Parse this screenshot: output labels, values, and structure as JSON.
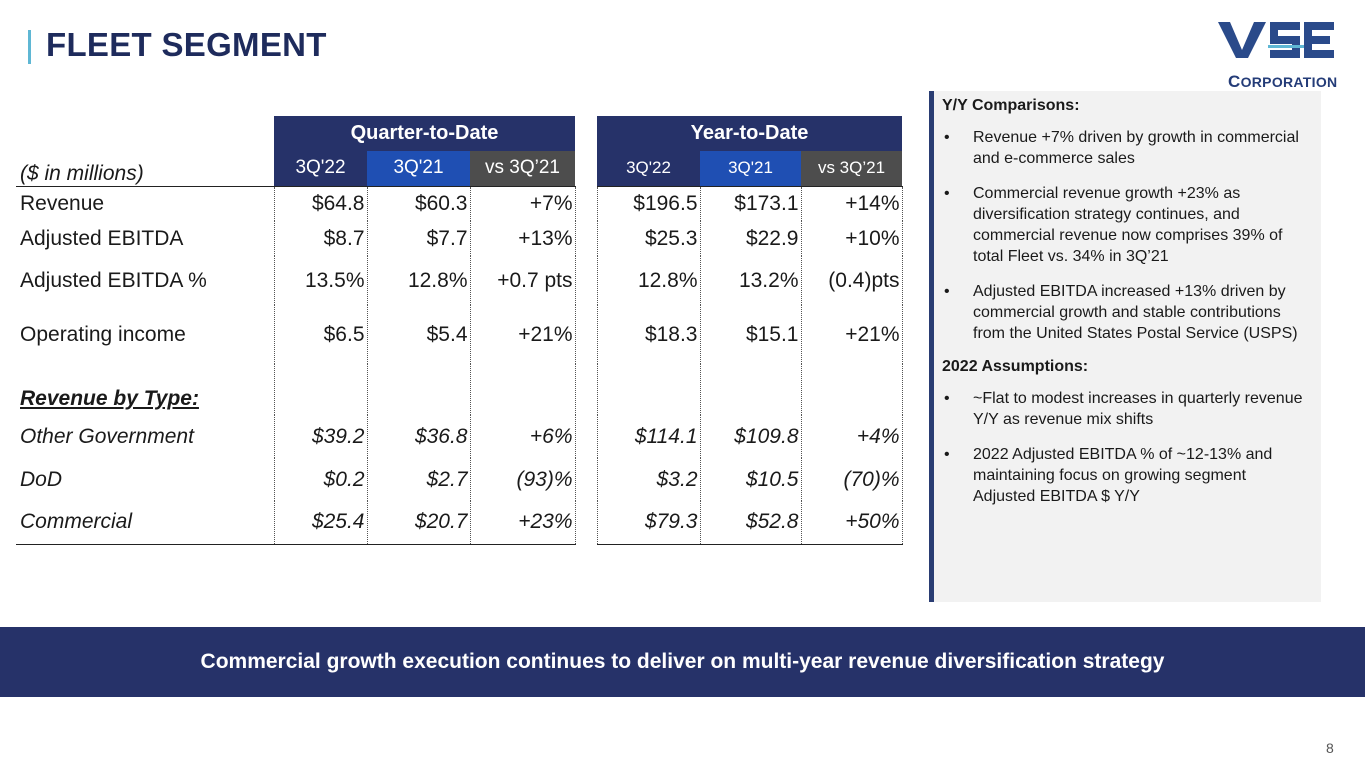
{
  "header": {
    "title": "FLEET SEGMENT"
  },
  "logo": {
    "letters": "VSE",
    "word_first": "C",
    "word_rest": "ORPORATION"
  },
  "table": {
    "units_label": "($ in millions)",
    "qtd_label": "Quarter-to-Date",
    "ytd_label": "Year-to-Date",
    "qtd_cols": [
      "3Q'22",
      "3Q'21",
      "vs 3Q’21"
    ],
    "ytd_cols": [
      "3Q'22",
      "3Q'21",
      "vs 3Q’21"
    ],
    "rows": [
      {
        "label": "Revenue",
        "qtd": [
          "$64.8",
          "$60.3",
          "+7%"
        ],
        "ytd": [
          "$196.5",
          "$173.1",
          "+14%"
        ]
      },
      {
        "label": "Adjusted EBITDA",
        "qtd": [
          "$8.7",
          "$7.7",
          "+13%"
        ],
        "ytd": [
          "$25.3",
          "$22.9",
          "+10%"
        ]
      },
      {
        "label": "Adjusted EBITDA %",
        "qtd": [
          "13.5%",
          "12.8%",
          "+0.7 pts"
        ],
        "ytd": [
          "12.8%",
          "13.2%",
          "(0.4)pts"
        ]
      },
      {
        "label": "Operating income",
        "qtd": [
          "$6.5",
          "$5.4",
          "+21%"
        ],
        "ytd": [
          "$18.3",
          "$15.1",
          "+21%"
        ]
      }
    ],
    "section_label": "Revenue by Type:",
    "type_rows": [
      {
        "label": "Other Government",
        "qtd": [
          "$39.2",
          "$36.8",
          "+6%"
        ],
        "ytd": [
          "$114.1",
          "$109.8",
          "+4%"
        ]
      },
      {
        "label": "DoD",
        "qtd": [
          "$0.2",
          "$2.7",
          "(93)%"
        ],
        "ytd": [
          "$3.2",
          "$10.5",
          "(70)%"
        ]
      },
      {
        "label": "Commercial",
        "qtd": [
          "$25.4",
          "$20.7",
          "+23%"
        ],
        "ytd": [
          "$79.3",
          "$52.8",
          "+50%"
        ]
      }
    ]
  },
  "sidebar": {
    "heading1": "Y/Y Comparisons:",
    "bullets1": [
      "Revenue +7% driven by growth in commercial and e-commerce sales",
      "Commercial revenue growth +23% as diversification strategy continues, and commercial revenue now comprises 39% of total Fleet vs. 34% in 3Q’21",
      "Adjusted EBITDA increased +13% driven by commercial growth and stable contributions from the United States Postal Service (USPS)"
    ],
    "heading2": "2022 Assumptions:",
    "bullets2": [
      "~Flat to modest increases in quarterly revenue Y/Y as revenue mix shifts",
      "2022 Adjusted EBITDA % of ~12-13% and maintaining focus on growing segment Adjusted EBITDA $ Y/Y"
    ],
    "bullet_char": "•"
  },
  "banner": {
    "text": "Commercial growth execution continues to deliver on multi-year revenue diversification strategy"
  },
  "footer": {
    "page_number": "8"
  }
}
